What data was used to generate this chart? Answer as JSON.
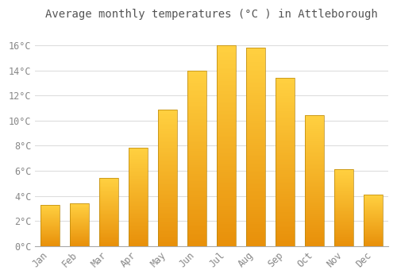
{
  "title": "Average monthly temperatures (°C ) in Attleborough",
  "months": [
    "Jan",
    "Feb",
    "Mar",
    "Apr",
    "May",
    "Jun",
    "Jul",
    "Aug",
    "Sep",
    "Oct",
    "Nov",
    "Dec"
  ],
  "values": [
    3.3,
    3.4,
    5.4,
    7.8,
    10.9,
    14.0,
    16.0,
    15.8,
    13.4,
    10.4,
    6.1,
    4.1
  ],
  "bar_color_bottom": "#E8900A",
  "bar_color_top": "#FFD040",
  "bar_edge_color": "#B8860B",
  "background_color": "#FFFFFF",
  "grid_color": "#DDDDDD",
  "ylim": [
    0,
    17.5
  ],
  "yticks": [
    0,
    2,
    4,
    6,
    8,
    10,
    12,
    14,
    16
  ],
  "title_fontsize": 10,
  "tick_fontsize": 8.5
}
